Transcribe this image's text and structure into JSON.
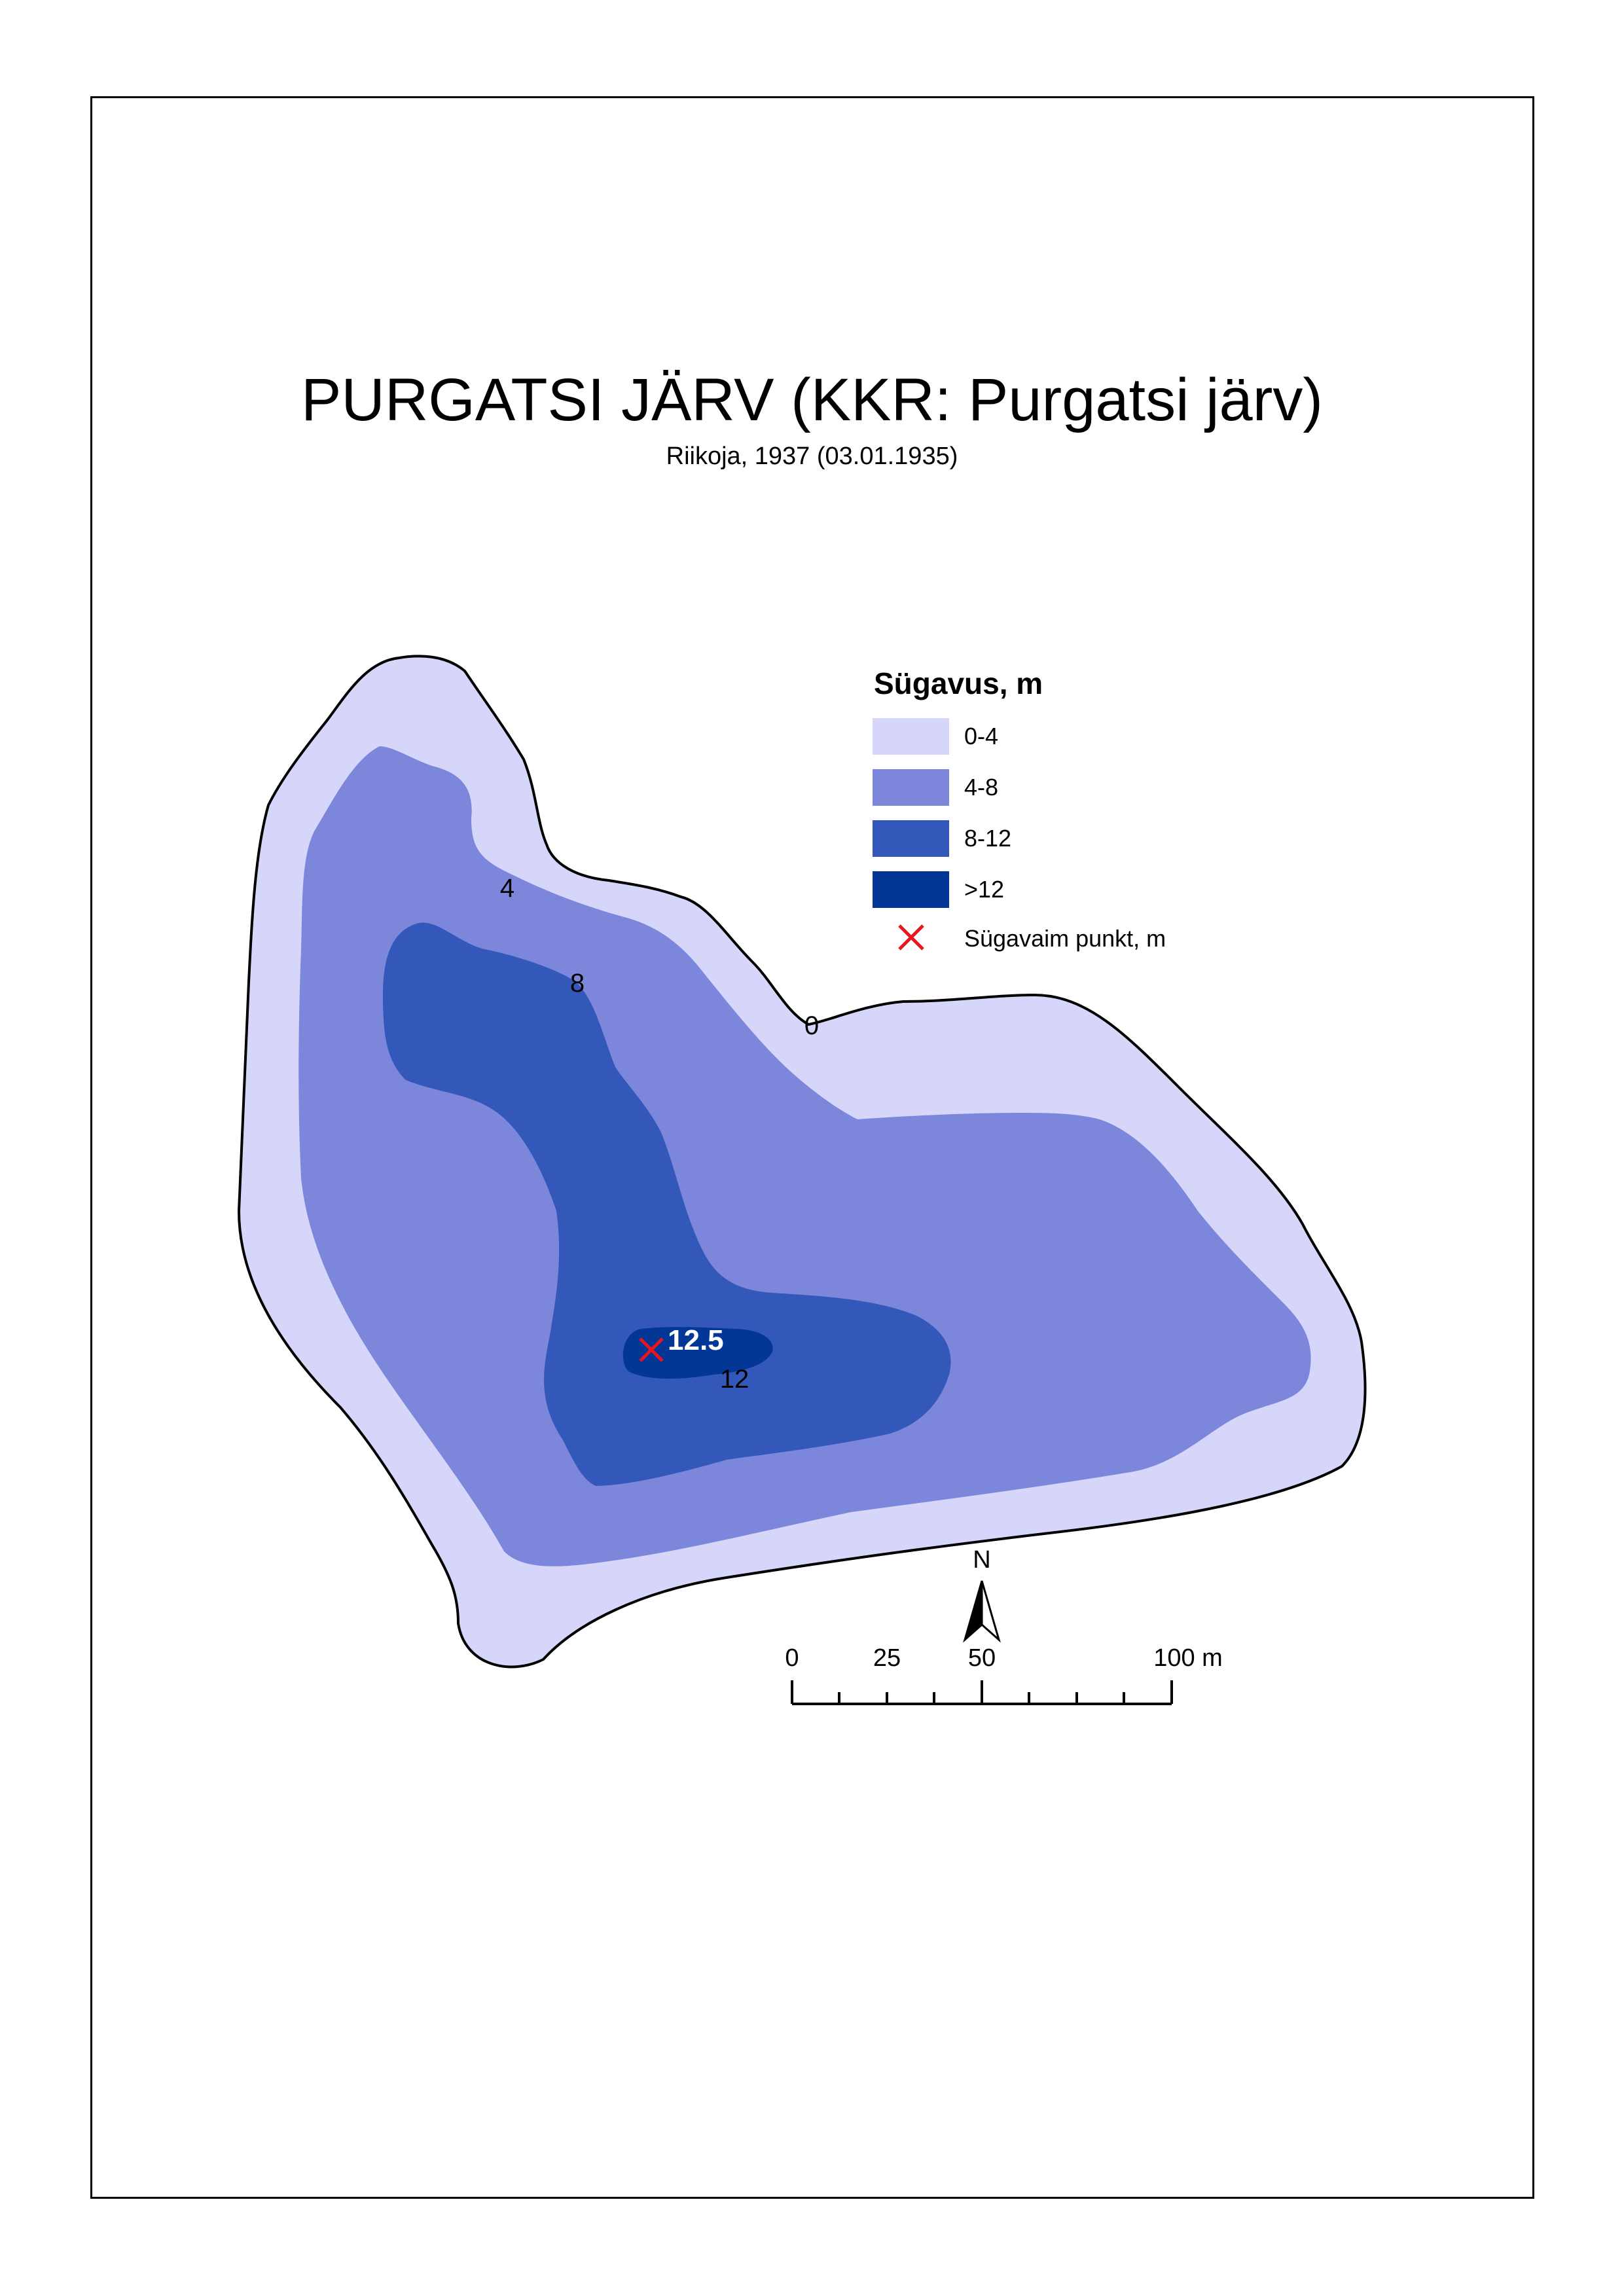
{
  "title": "PURGATSI JÄRV (KKR: Purgatsi järv)",
  "subtitle": "Riikoja, 1937 (03.01.1935)",
  "legend": {
    "title": "Sügavus, m",
    "items": [
      {
        "label": "0-4",
        "color": "#d6d6fa"
      },
      {
        "label": "4-8",
        "color": "#7c87db"
      },
      {
        "label": "8-12",
        "color": "#3457ba"
      },
      {
        "label": ">12",
        "color": "#033795"
      }
    ],
    "deepest_point_label": "Sügavaim punkt, m",
    "deepest_point_color": "#e8141e"
  },
  "contour_labels": [
    "0",
    "4",
    "8",
    "12"
  ],
  "deepest_point_value": "12.5",
  "north_arrow": {
    "label": "N"
  },
  "scale_bar": {
    "labels": [
      "0",
      "25",
      "50",
      "100 m"
    ]
  }
}
